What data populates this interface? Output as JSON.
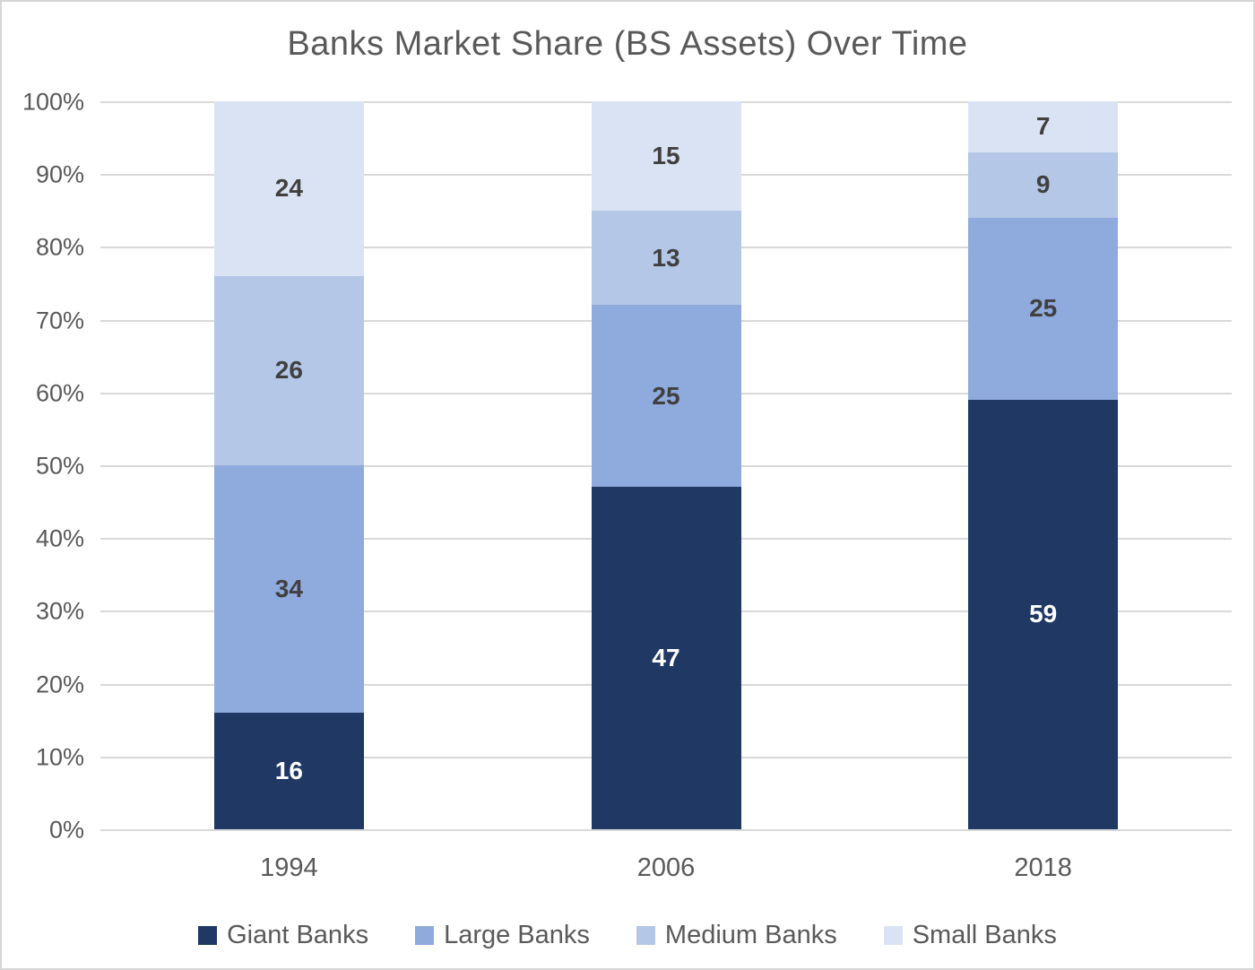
{
  "title": "Banks Market Share (BS Assets) Over Time",
  "chart_data": {
    "type": "bar",
    "stacked": true,
    "title": "Banks Market Share (BS Assets) Over Time",
    "categories": [
      "1994",
      "2006",
      "2018"
    ],
    "series": [
      {
        "name": "Giant Banks",
        "color": "#1f3864",
        "label_color": "#ffffff",
        "values": [
          16,
          47,
          59
        ]
      },
      {
        "name": "Large Banks",
        "color": "#8faadc",
        "label_color": "#404040",
        "values": [
          34,
          25,
          25
        ]
      },
      {
        "name": "Medium Banks",
        "color": "#b4c7e7",
        "label_color": "#404040",
        "values": [
          26,
          13,
          9
        ]
      },
      {
        "name": "Small Banks",
        "color": "#dae3f3",
        "label_color": "#404040",
        "values": [
          24,
          15,
          7
        ]
      }
    ],
    "xlabel": "",
    "ylabel": "",
    "ylim": [
      0,
      100
    ],
    "y_axis": {
      "min": 0,
      "max": 100,
      "step": 10,
      "tick_labels": [
        "0%",
        "10%",
        "20%",
        "30%",
        "40%",
        "50%",
        "60%",
        "70%",
        "80%",
        "90%",
        "100%"
      ]
    },
    "grid": true,
    "gridline_color": "#d9d9d9",
    "axis_text_color": "#595959",
    "legend_position": "bottom",
    "legend_entries": [
      "Giant Banks",
      "Large Banks",
      "Medium Banks",
      "Small Banks"
    ]
  }
}
